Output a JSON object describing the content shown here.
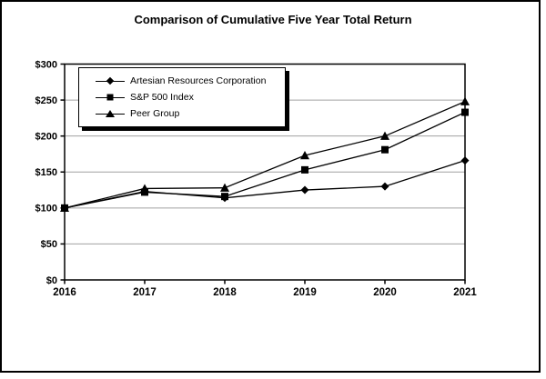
{
  "chart_data": {
    "type": "line",
    "title": "Comparison of Cumulative Five Year Total Return",
    "categories": [
      "2016",
      "2017",
      "2018",
      "2019",
      "2020",
      "2021"
    ],
    "series": [
      {
        "name": "Artesian Resources Corporation",
        "marker": "diamond",
        "values": [
          100,
          123,
          114,
          125,
          130,
          166
        ]
      },
      {
        "name": "S&P 500 Index",
        "marker": "square",
        "values": [
          100,
          122,
          116,
          153,
          181,
          233
        ]
      },
      {
        "name": "Peer Group",
        "marker": "triangle",
        "values": [
          100,
          127,
          128,
          173,
          200,
          248
        ]
      }
    ],
    "y_axis": {
      "min": 0,
      "max": 300,
      "step": 50,
      "tick_labels": [
        "$0",
        "$50",
        "$100",
        "$150",
        "$200",
        "$250",
        "$300"
      ]
    },
    "x_axis": {
      "tick_labels": [
        "2016",
        "2017",
        "2018",
        "2019",
        "2020",
        "2021"
      ]
    },
    "legend_position": "top-left-inside",
    "grid": "horizontal",
    "colors": {
      "series": "#000000",
      "gridline": "#a0a0a0",
      "plot_border": "#000000",
      "background": "#ffffff",
      "legend_shadow": "#000000"
    }
  }
}
